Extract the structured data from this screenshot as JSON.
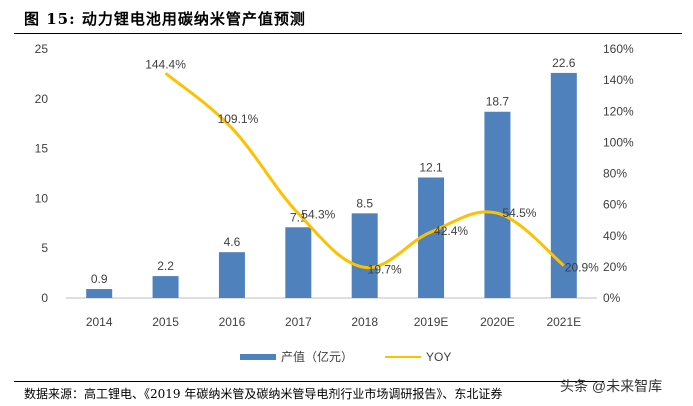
{
  "title": "图 15: 动力锂电池用碳纳米管产值预测",
  "source": "数据来源：高工锂电、《2019 年碳纳米管及碳纳米管导电剂行业市场调研报告》、东北证券",
  "watermark": "头条 @未来智库",
  "chart_data": {
    "type": "bar+line",
    "categories": [
      "2014",
      "2015",
      "2016",
      "2017",
      "2018",
      "2019E",
      "2020E",
      "2021E"
    ],
    "series": [
      {
        "name": "产值（亿元）",
        "type": "bar",
        "axis": "left",
        "color": "#4F81BD",
        "values": [
          0.9,
          2.2,
          4.6,
          7.1,
          8.5,
          12.1,
          18.7,
          22.6
        ],
        "labels": [
          "0.9",
          "2.2",
          "4.6",
          "7.1",
          "8.5",
          "12.1",
          "18.7",
          "22.6"
        ]
      },
      {
        "name": "YOY",
        "type": "line",
        "axis": "right",
        "color": "#FFC000",
        "values": [
          null,
          144.4,
          109.1,
          54.3,
          19.7,
          42.4,
          54.5,
          20.9
        ],
        "labels": [
          null,
          "144.4%",
          "109.1%",
          "54.3%",
          "19.7%",
          "42.4%",
          "54.5%",
          "20.9%"
        ]
      }
    ],
    "left_axis": {
      "range": [
        0,
        25
      ],
      "ticks": [
        "0",
        "5",
        "10",
        "15",
        "20",
        "25"
      ]
    },
    "right_axis": {
      "range": [
        0,
        160
      ],
      "ticks": [
        "0%",
        "20%",
        "40%",
        "60%",
        "80%",
        "100%",
        "120%",
        "140%",
        "160%"
      ]
    },
    "grid": false,
    "legend": "bottom"
  }
}
